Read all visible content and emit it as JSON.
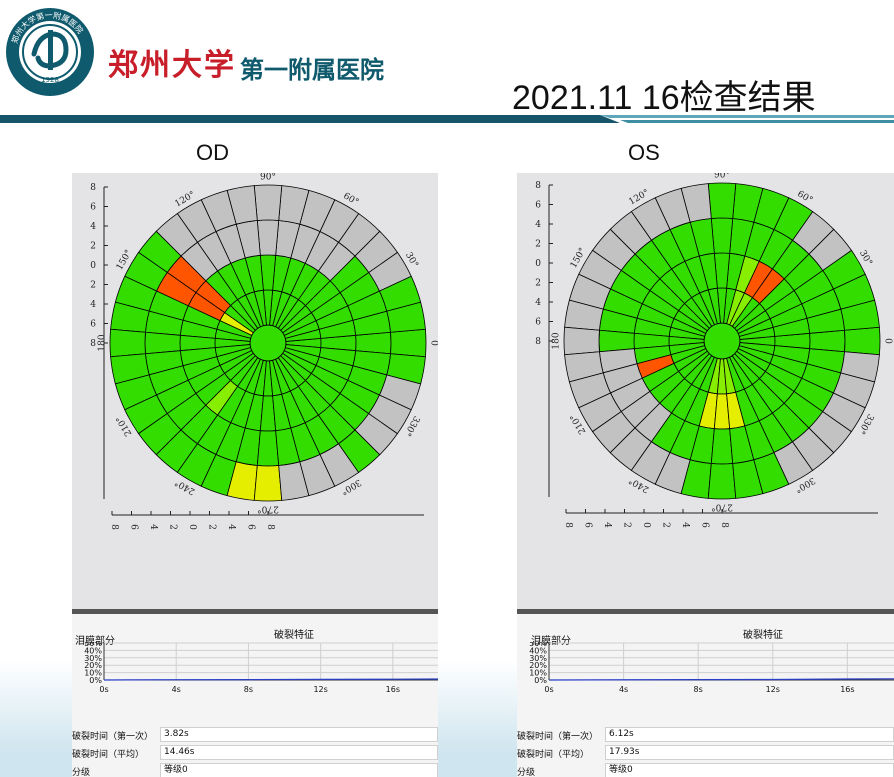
{
  "header": {
    "hospital_name": "郑州大学",
    "hospital_sub": "第一附属医院",
    "logo_text": "郑州大学第一附属医院",
    "logo_year": "1928",
    "title": "2021.11 16检查结果"
  },
  "colors": {
    "green": "#33dd00",
    "lime": "#88ee00",
    "yellow": "#e6ee00",
    "orange": "#ff5500",
    "gray": "#c2c2c2",
    "logo": "#0f5a6d",
    "brand_red": "#c81e2a"
  },
  "polar_labels": {
    "angles": [
      "90°",
      "60°",
      "30°",
      "0",
      "330°",
      "300°",
      "270°",
      "240°",
      "210°",
      "180",
      "150°",
      "120°"
    ],
    "ticks": [
      "8",
      "6",
      "4",
      "2",
      "0",
      "2",
      "4",
      "6",
      "8"
    ]
  },
  "eyes": [
    {
      "label": "OD",
      "cells": {
        "orange": [
          [
            140,
            2
          ],
          [
            140,
            3
          ],
          [
            150,
            2
          ],
          [
            150,
            3
          ]
        ],
        "yellow": [
          [
            150,
            1
          ],
          [
            270,
            4
          ],
          [
            260,
            4
          ]
        ],
        "lime": [
          [
            230,
            2
          ]
        ],
        "gray": [
          [
            340,
            4
          ],
          [
            330,
            4
          ],
          [
            320,
            4
          ],
          [
            300,
            4
          ],
          [
            290,
            4
          ],
          [
            280,
            4
          ],
          [
            30,
            4
          ],
          [
            40,
            4
          ],
          [
            50,
            4
          ],
          [
            60,
            4
          ],
          [
            70,
            4
          ],
          [
            80,
            4
          ],
          [
            90,
            4
          ],
          [
            100,
            4
          ],
          [
            110,
            4
          ],
          [
            120,
            4
          ],
          [
            130,
            4
          ],
          [
            50,
            3
          ],
          [
            60,
            3
          ],
          [
            70,
            3
          ],
          [
            80,
            3
          ],
          [
            90,
            3
          ],
          [
            100,
            3
          ],
          [
            110,
            3
          ],
          [
            120,
            3
          ],
          [
            130,
            3
          ]
        ]
      },
      "tearfilm": {
        "title": "破裂特征",
        "ylabel": "泪膜部分",
        "y_ticks": [
          "50%",
          "40%",
          "30%",
          "20%",
          "10%",
          "0%"
        ],
        "x_ticks": [
          "0s",
          "4s",
          "8s",
          "12s",
          "16s"
        ],
        "series": [
          [
            0,
            0
          ],
          [
            4,
            0.4
          ],
          [
            8,
            0.6
          ],
          [
            12,
            0.8
          ],
          [
            16,
            1.1
          ],
          [
            18.5,
            1.4
          ]
        ]
      },
      "results": [
        {
          "key": "破裂时间（第一次）",
          "value": "3.82s"
        },
        {
          "key": "破裂时间（平均）",
          "value": "14.46s"
        },
        {
          "key": "分级",
          "value": "等级0"
        }
      ]
    },
    {
      "label": "OS",
      "cells": {
        "orange": [
          [
            60,
            2
          ],
          [
            50,
            2
          ],
          [
            200,
            2
          ]
        ],
        "yellow": [
          [
            270,
            2
          ],
          [
            260,
            2
          ],
          [
            280,
            2
          ]
        ],
        "lime": [
          [
            60,
            1
          ],
          [
            70,
            1
          ],
          [
            70,
            2
          ],
          [
            270,
            1
          ],
          [
            260,
            1
          ],
          [
            280,
            1
          ]
        ],
        "gray": [
          [
            110,
            4
          ],
          [
            100,
            4
          ],
          [
            120,
            4
          ],
          [
            130,
            4
          ],
          [
            140,
            4
          ],
          [
            150,
            4
          ],
          [
            160,
            4
          ],
          [
            170,
            4
          ],
          [
            180,
            4
          ],
          [
            190,
            4
          ],
          [
            50,
            4
          ],
          [
            40,
            4
          ],
          [
            200,
            4
          ],
          [
            210,
            4
          ],
          [
            220,
            4
          ],
          [
            230,
            4
          ],
          [
            190,
            3
          ],
          [
            200,
            3
          ],
          [
            210,
            3
          ],
          [
            220,
            3
          ],
          [
            230,
            3
          ],
          [
            250,
            4
          ],
          [
            240,
            4
          ],
          [
            300,
            4
          ],
          [
            310,
            4
          ],
          [
            320,
            4
          ],
          [
            330,
            4
          ],
          [
            340,
            4
          ],
          [
            350,
            4
          ]
        ]
      },
      "tearfilm": {
        "title": "破裂特征",
        "ylabel": "泪膜部分",
        "y_ticks": [
          "50%",
          "40%",
          "30%",
          "20%",
          "10%",
          "0%"
        ],
        "x_ticks": [
          "0s",
          "4s",
          "8s",
          "12s",
          "16s"
        ],
        "series": [
          [
            0,
            0
          ],
          [
            8,
            0.5
          ],
          [
            12,
            0.7
          ],
          [
            16,
            1.3
          ],
          [
            18.5,
            1.6
          ]
        ]
      },
      "results": [
        {
          "key": "破裂时间（第一次）",
          "value": "6.12s"
        },
        {
          "key": "破裂时间（平均）",
          "value": "17.93s"
        },
        {
          "key": "分级",
          "value": "等级0"
        }
      ]
    }
  ]
}
